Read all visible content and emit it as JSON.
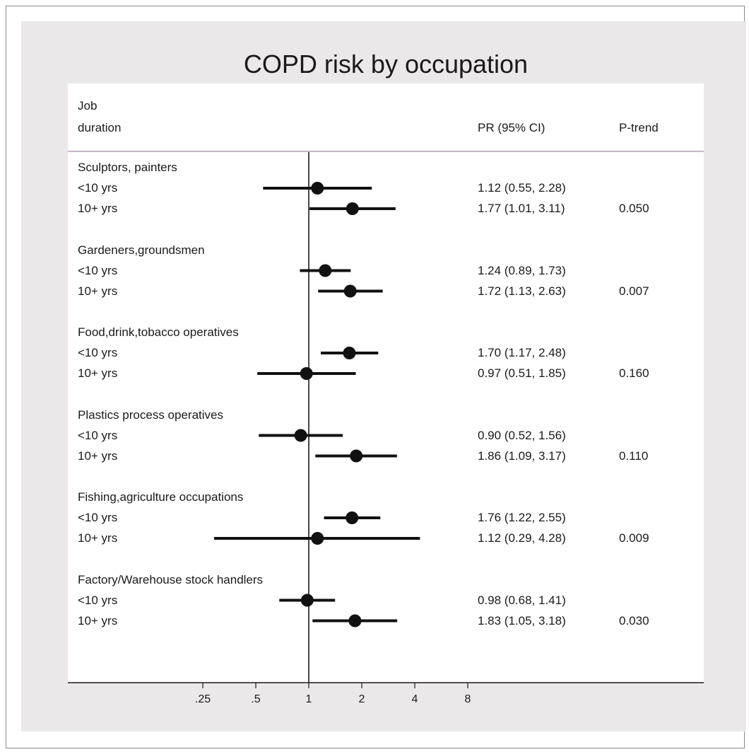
{
  "chart_data": {
    "type": "forest",
    "title": "COPD risk by occupation",
    "header": {
      "col1_line1": "Job",
      "col1_line2": "duration",
      "col2": "PR (95% CI)",
      "col3": "P-trend"
    },
    "x_scale": "log",
    "reference_line": 1,
    "ticks": [
      {
        "value": 0.25,
        "label": ".25"
      },
      {
        "value": 0.5,
        "label": ".5"
      },
      {
        "value": 1,
        "label": "1"
      },
      {
        "value": 2,
        "label": "2"
      },
      {
        "value": 4,
        "label": "4"
      },
      {
        "value": 8,
        "label": "8"
      }
    ],
    "groups": [
      {
        "name": "Sculptors, painters",
        "rows": [
          {
            "label": "<10 yrs",
            "pr": 1.12,
            "lo": 0.55,
            "hi": 2.28,
            "ci_text": "1.12 (0.55, 2.28)",
            "ptrend": ""
          },
          {
            "label": "10+ yrs",
            "pr": 1.77,
            "lo": 1.01,
            "hi": 3.11,
            "ci_text": "1.77 (1.01, 3.11)",
            "ptrend": "0.050"
          }
        ]
      },
      {
        "name": "Gardeners,groundsmen",
        "rows": [
          {
            "label": "<10 yrs",
            "pr": 1.24,
            "lo": 0.89,
            "hi": 1.73,
            "ci_text": "1.24 (0.89, 1.73)",
            "ptrend": ""
          },
          {
            "label": "10+ yrs",
            "pr": 1.72,
            "lo": 1.13,
            "hi": 2.63,
            "ci_text": "1.72 (1.13, 2.63)",
            "ptrend": "0.007"
          }
        ]
      },
      {
        "name": "Food,drink,tobacco operatives",
        "rows": [
          {
            "label": "<10 yrs",
            "pr": 1.7,
            "lo": 1.17,
            "hi": 2.48,
            "ci_text": "1.70 (1.17, 2.48)",
            "ptrend": ""
          },
          {
            "label": "10+ yrs",
            "pr": 0.97,
            "lo": 0.51,
            "hi": 1.85,
            "ci_text": "0.97 (0.51, 1.85)",
            "ptrend": "0.160"
          }
        ]
      },
      {
        "name": "Plastics process operatives",
        "rows": [
          {
            "label": "<10 yrs",
            "pr": 0.9,
            "lo": 0.52,
            "hi": 1.56,
            "ci_text": "0.90 (0.52, 1.56)",
            "ptrend": ""
          },
          {
            "label": "10+ yrs",
            "pr": 1.86,
            "lo": 1.09,
            "hi": 3.17,
            "ci_text": "1.86 (1.09, 3.17)",
            "ptrend": "0.110"
          }
        ]
      },
      {
        "name": "Fishing,agriculture occupations",
        "rows": [
          {
            "label": "<10 yrs",
            "pr": 1.76,
            "lo": 1.22,
            "hi": 2.55,
            "ci_text": "1.76 (1.22, 2.55)",
            "ptrend": ""
          },
          {
            "label": "10+ yrs",
            "pr": 1.12,
            "lo": 0.29,
            "hi": 4.28,
            "ci_text": "1.12 (0.29, 4.28)",
            "ptrend": "0.009"
          }
        ]
      },
      {
        "name": "Factory/Warehouse stock handlers",
        "rows": [
          {
            "label": "<10 yrs",
            "pr": 0.98,
            "lo": 0.68,
            "hi": 1.41,
            "ci_text": "0.98 (0.68, 1.41)",
            "ptrend": ""
          },
          {
            "label": "10+ yrs",
            "pr": 1.83,
            "lo": 1.05,
            "hi": 3.18,
            "ci_text": "1.83 (1.05, 3.18)",
            "ptrend": "0.030"
          }
        ]
      }
    ]
  }
}
